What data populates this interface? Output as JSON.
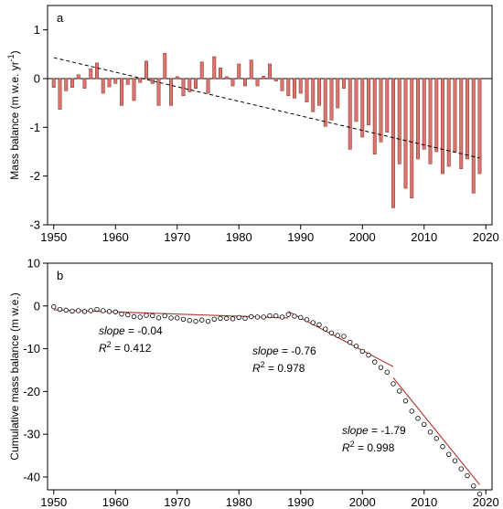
{
  "chart_data": [
    {
      "panel": "a",
      "type": "bar",
      "ylabel": "Mass balance (m w.e. yr",
      "ylabel_sup": "-1",
      "ylabel_tail": ")",
      "ylim": [
        -3,
        1.5
      ],
      "xlim": [
        1949,
        2021
      ],
      "xticks": [
        1950,
        1960,
        1970,
        1980,
        1990,
        2000,
        2010,
        2020
      ],
      "yticks": [
        -3,
        -2,
        -1,
        0,
        1
      ],
      "x": [
        1950,
        1951,
        1952,
        1953,
        1954,
        1955,
        1956,
        1957,
        1958,
        1959,
        1960,
        1961,
        1962,
        1963,
        1964,
        1965,
        1966,
        1967,
        1968,
        1969,
        1970,
        1971,
        1972,
        1973,
        1974,
        1975,
        1976,
        1977,
        1978,
        1979,
        1980,
        1981,
        1982,
        1983,
        1984,
        1985,
        1986,
        1987,
        1988,
        1989,
        1990,
        1991,
        1992,
        1993,
        1994,
        1995,
        1996,
        1997,
        1998,
        1999,
        2000,
        2001,
        2002,
        2003,
        2004,
        2005,
        2006,
        2007,
        2008,
        2009,
        2010,
        2011,
        2012,
        2013,
        2014,
        2015,
        2016,
        2017,
        2018,
        2019
      ],
      "values": [
        -0.18,
        -0.63,
        -0.25,
        -0.18,
        0.08,
        -0.2,
        0.2,
        0.32,
        -0.3,
        -0.17,
        -0.1,
        -0.55,
        -0.12,
        -0.45,
        -0.08,
        0.36,
        -0.1,
        -0.55,
        0.52,
        -0.55,
        0.04,
        -0.35,
        -0.27,
        -0.2,
        0.34,
        -0.3,
        0.45,
        0.22,
        0.04,
        -0.15,
        0.3,
        -0.15,
        0.38,
        -0.15,
        0.05,
        0.3,
        -0.05,
        -0.25,
        -0.35,
        -0.4,
        -0.3,
        -0.48,
        -0.68,
        -0.55,
        -0.98,
        -0.85,
        -0.6,
        -0.2,
        -1.45,
        -0.88,
        -1.2,
        -0.95,
        -1.55,
        -1.3,
        -1.1,
        -2.65,
        -1.75,
        -2.25,
        -2.45,
        -1.65,
        -1.45,
        -1.75,
        -1.5,
        -1.95,
        -1.8,
        -1.5,
        -1.85,
        -1.65,
        -2.35,
        -1.95
      ],
      "trend": {
        "x": [
          1950,
          2019
        ],
        "y": [
          0.43,
          -1.63
        ]
      }
    },
    {
      "panel": "b",
      "type": "scatter",
      "ylabel": "Cumulative mass balance (m w.e.)",
      "ylim": [
        -43,
        10
      ],
      "xlim": [
        1949,
        2021
      ],
      "xticks": [
        1950,
        1960,
        1970,
        1980,
        1990,
        2000,
        2010,
        2020
      ],
      "yticks": [
        -40,
        -30,
        -20,
        -10,
        0,
        10
      ],
      "x": [
        1950,
        1951,
        1952,
        1953,
        1954,
        1955,
        1956,
        1957,
        1958,
        1959,
        1960,
        1961,
        1962,
        1963,
        1964,
        1965,
        1966,
        1967,
        1968,
        1969,
        1970,
        1971,
        1972,
        1973,
        1974,
        1975,
        1976,
        1977,
        1978,
        1979,
        1980,
        1981,
        1982,
        1983,
        1984,
        1985,
        1986,
        1987,
        1988,
        1989,
        1990,
        1991,
        1992,
        1993,
        1994,
        1995,
        1996,
        1997,
        1998,
        1999,
        2000,
        2001,
        2002,
        2003,
        2004,
        2005,
        2006,
        2007,
        2008,
        2009,
        2010,
        2011,
        2012,
        2013,
        2014,
        2015,
        2016,
        2017,
        2018,
        2019
      ],
      "y": [
        -0.2,
        -0.8,
        -1.0,
        -1.2,
        -1.1,
        -1.3,
        -1.1,
        -0.8,
        -1.1,
        -1.3,
        -1.4,
        -1.9,
        -2.1,
        -2.5,
        -2.6,
        -2.2,
        -2.3,
        -2.8,
        -2.3,
        -2.8,
        -2.8,
        -3.1,
        -3.4,
        -3.6,
        -3.3,
        -3.6,
        -3.1,
        -2.9,
        -2.9,
        -3.0,
        -2.7,
        -2.9,
        -2.5,
        -2.6,
        -2.6,
        -2.3,
        -2.3,
        -2.6,
        -2.0,
        -2.4,
        -2.7,
        -3.2,
        -3.9,
        -4.4,
        -5.4,
        -6.3,
        -6.9,
        -7.1,
        -8.5,
        -9.4,
        -10.6,
        -11.5,
        -13.1,
        -14.4,
        -15.5,
        -18.2,
        -19.9,
        -22.2,
        -24.6,
        -26.3,
        -27.7,
        -29.5,
        -31.0,
        -32.9,
        -34.7,
        -36.2,
        -38.1,
        -39.7,
        -42.1,
        -44.0
      ],
      "fits": [
        {
          "x": [
            1950,
            1988
          ],
          "y": [
            -0.9,
            -2.8
          ]
        },
        {
          "x": [
            1988,
            2005
          ],
          "y": [
            -1.3,
            -14.2
          ]
        },
        {
          "x": [
            2005,
            2019
          ],
          "y": [
            -16.8,
            -41.8
          ]
        }
      ],
      "annotations": [
        {
          "slope_label": "slope",
          "slope_value": " = -0.04",
          "r2_label": "R",
          "r2_sup": "2",
          "r2_value": " = 0.412"
        },
        {
          "slope_label": "slope",
          "slope_value": " = -0.76",
          "r2_label": "R",
          "r2_sup": "2",
          "r2_value": " = 0.978"
        },
        {
          "slope_label": "slope",
          "slope_value": " = -1.79",
          "r2_label": "R",
          "r2_sup": "2",
          "r2_value": " = 0.998"
        }
      ]
    }
  ],
  "colors": {
    "bar_fill": "#d9766e",
    "bar_stroke": "#9a3b35",
    "fit_line": "#b4413a",
    "trend_line": "#000000"
  }
}
